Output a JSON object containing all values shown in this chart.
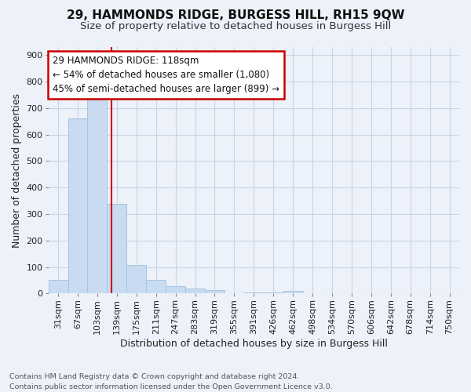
{
  "title1": "29, HAMMONDS RIDGE, BURGESS HILL, RH15 9QW",
  "title2": "Size of property relative to detached houses in Burgess Hill",
  "xlabel": "Distribution of detached houses by size in Burgess Hill",
  "ylabel": "Number of detached properties",
  "footnote": "Contains HM Land Registry data © Crown copyright and database right 2024.\nContains public sector information licensed under the Open Government Licence v3.0.",
  "bar_labels": [
    "31sqm",
    "67sqm",
    "103sqm",
    "139sqm",
    "175sqm",
    "211sqm",
    "247sqm",
    "283sqm",
    "319sqm",
    "355sqm",
    "391sqm",
    "426sqm",
    "462sqm",
    "498sqm",
    "534sqm",
    "570sqm",
    "606sqm",
    "642sqm",
    "678sqm",
    "714sqm",
    "750sqm"
  ],
  "bar_values": [
    52,
    660,
    750,
    338,
    108,
    52,
    27,
    18,
    12,
    0,
    3,
    3,
    9,
    0,
    0,
    0,
    0,
    0,
    0,
    0,
    0
  ],
  "bar_color": "#c8dbf0",
  "bar_edge_color": "#a8c4e0",
  "grid_color": "#c8d4e8",
  "vline_x": 2.72,
  "vline_color": "#cc0000",
  "annotation_text": "29 HAMMONDS RIDGE: 118sqm\n← 54% of detached houses are smaller (1,080)\n45% of semi-detached houses are larger (899) →",
  "annotation_box_color": "#ffffff",
  "annotation_box_edge": "#cc0000",
  "ylim": [
    0,
    930
  ],
  "yticks": [
    0,
    100,
    200,
    300,
    400,
    500,
    600,
    700,
    800,
    900
  ],
  "background_color": "#edf1f9",
  "title1_fontsize": 11,
  "title2_fontsize": 9.5,
  "xlabel_fontsize": 9,
  "ylabel_fontsize": 9,
  "tick_fontsize": 8,
  "annot_fontsize": 8.5
}
